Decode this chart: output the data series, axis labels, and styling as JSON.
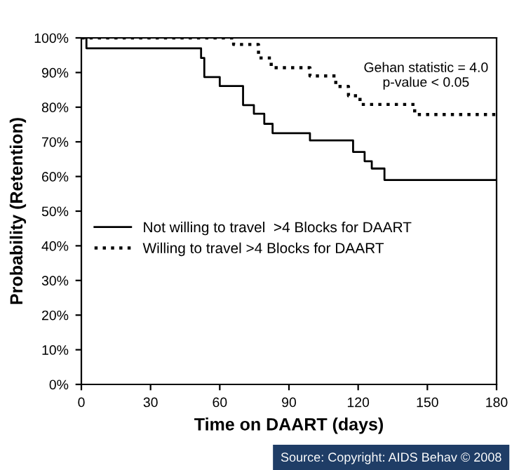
{
  "chart_data": {
    "type": "step",
    "xlabel": "Time on DAART (days)",
    "ylabel": "Probability (Retention)",
    "series": [
      {
        "name": "Not willing to travel  >4 Blocks for DAART",
        "color": "#000000",
        "line_style": "solid",
        "x": [
          0,
          2.2,
          51.9,
          53.3,
          60,
          70.1,
          74.8,
          79.3,
          82.9,
          99.1,
          117.8,
          122.8,
          125.9,
          131.4,
          180
        ],
        "values": [
          100,
          97,
          94.2,
          88.7,
          86.1,
          80.6,
          78.1,
          75.2,
          72.5,
          70.4,
          67.1,
          64.4,
          62.3,
          59,
          59
        ]
      },
      {
        "name": "Willing to travel >4 Blocks for DAART",
        "color": "#000000",
        "line_style": "dotted",
        "x": [
          0,
          66,
          76.8,
          82.3,
          99.1,
          110.3,
          115.8,
          120.8,
          144.5,
          180
        ],
        "values": [
          100,
          98.1,
          94.2,
          91.4,
          89,
          86,
          83.3,
          80.8,
          77.9,
          77.9
        ]
      }
    ],
    "xlim": [
      0,
      180
    ],
    "xticks": [
      0,
      30,
      60,
      90,
      120,
      150,
      180
    ],
    "ylim": [
      0,
      100
    ],
    "yticks": [
      {
        "value": 0,
        "label": "0%"
      },
      {
        "value": 10,
        "label": "10%"
      },
      {
        "value": 20,
        "label": "20%"
      },
      {
        "value": 30,
        "label": "30%"
      },
      {
        "value": 40,
        "label": "40%"
      },
      {
        "value": 50,
        "label": "50%"
      },
      {
        "value": 60,
        "label": "60%"
      },
      {
        "value": 70,
        "label": "70%"
      },
      {
        "value": 80,
        "label": "80%"
      },
      {
        "value": 90,
        "label": "90%"
      },
      {
        "value": 100,
        "label": "100%"
      }
    ],
    "grid": false,
    "legend": "left",
    "annotations": [
      "Gehan statistic = 4.0\np-value < 0.05",
      "Source: Copyright: AIDS Behav © 2008"
    ]
  }
}
